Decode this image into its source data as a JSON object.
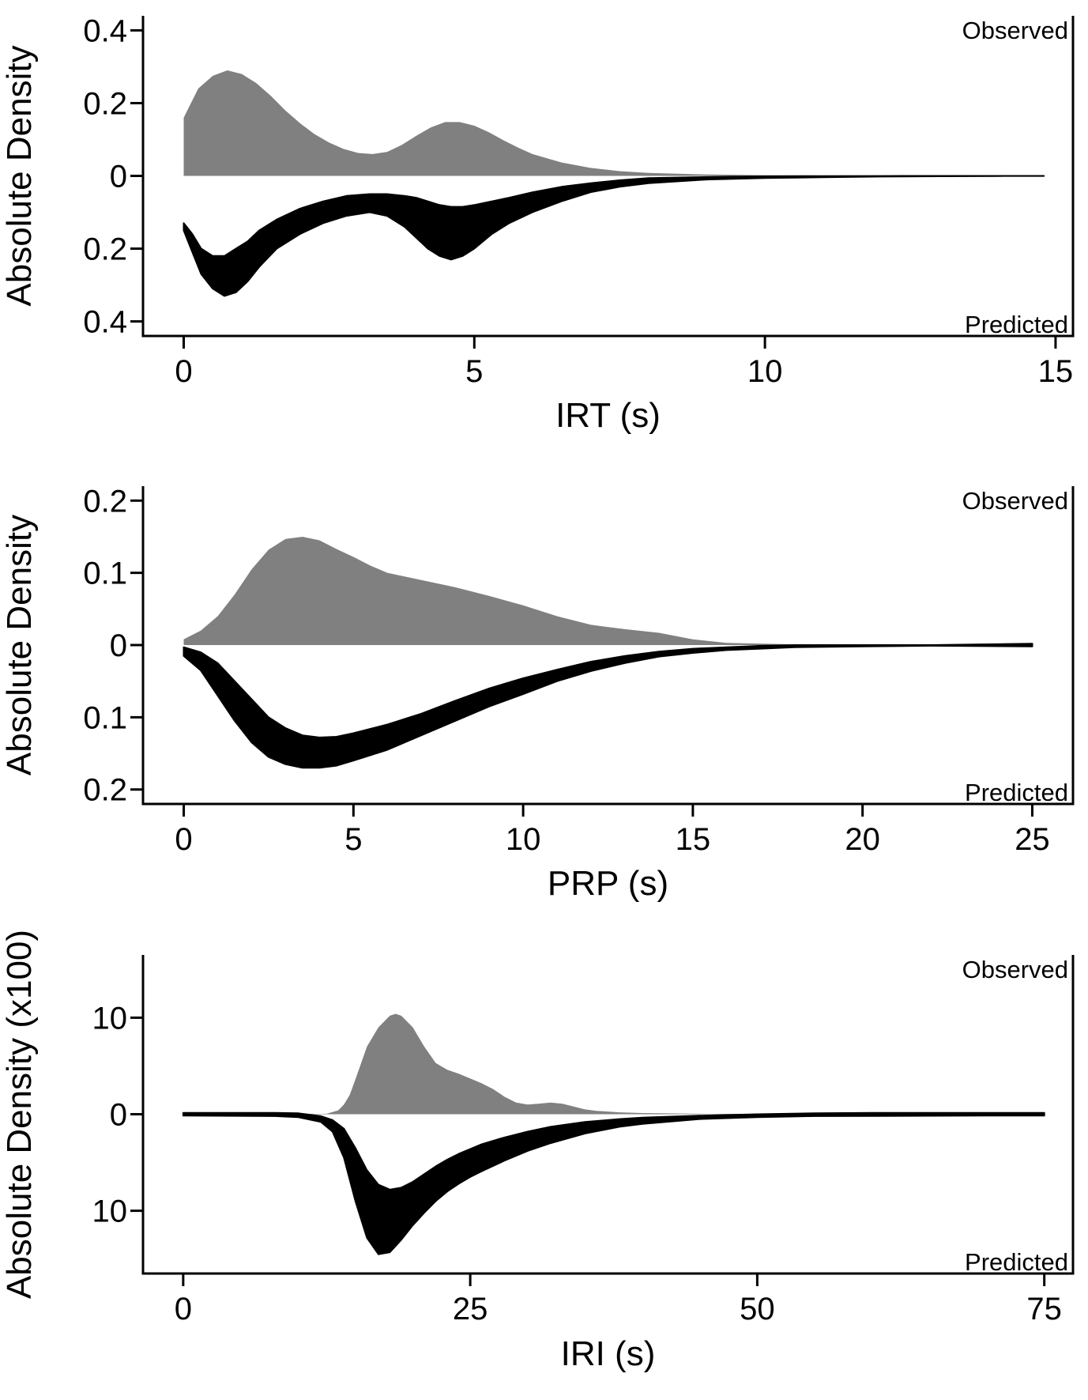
{
  "colors": {
    "observed": "#808080",
    "predicted": "#000000",
    "axis": "#000000",
    "background": "#ffffff"
  },
  "chart_data": [
    {
      "type": "area",
      "title": "",
      "xlabel": "IRT (s)",
      "ylabel": "Absolute Density",
      "top_label": "Observed",
      "bottom_label": "Predicted",
      "xlim": [
        -0.7,
        15.3
      ],
      "ylim": [
        -0.44,
        0.44
      ],
      "xticks": [
        0,
        5,
        10,
        15
      ],
      "xtick_labels": [
        "0",
        "5",
        "10",
        "15"
      ],
      "yticks": [
        0.4,
        0.2,
        0,
        -0.2,
        -0.4
      ],
      "ytick_labels": [
        "0.4",
        "0.2",
        "0",
        "0.2",
        "0.4"
      ],
      "grid": false,
      "series": [
        {
          "name": "Observed",
          "x": [
            0,
            0.25,
            0.5,
            0.75,
            1.0,
            1.25,
            1.5,
            1.75,
            2.0,
            2.25,
            2.5,
            2.75,
            3.0,
            3.25,
            3.5,
            3.75,
            4.0,
            4.25,
            4.5,
            4.75,
            5.0,
            5.25,
            5.5,
            5.75,
            6.0,
            6.5,
            7.0,
            7.5,
            8.0,
            9.0,
            10.0,
            11.0,
            12.0,
            13.0,
            14.0,
            14.8
          ],
          "values": [
            0.16,
            0.24,
            0.275,
            0.29,
            0.28,
            0.255,
            0.22,
            0.18,
            0.145,
            0.115,
            0.092,
            0.074,
            0.063,
            0.06,
            0.066,
            0.085,
            0.11,
            0.133,
            0.148,
            0.148,
            0.138,
            0.12,
            0.098,
            0.078,
            0.06,
            0.037,
            0.022,
            0.013,
            0.008,
            0.004,
            0.002,
            0.001,
            0.0005,
            0.0002,
            0.0001,
            0
          ]
        },
        {
          "name": "Predicted",
          "x": [
            0,
            0.15,
            0.3,
            0.5,
            0.7,
            0.9,
            1.1,
            1.3,
            1.6,
            2.0,
            2.4,
            2.8,
            3.2,
            3.5,
            3.8,
            4.0,
            4.2,
            4.4,
            4.6,
            4.8,
            5.0,
            5.3,
            5.6,
            6.0,
            6.5,
            7.0,
            7.5,
            8.0,
            9.0,
            10.0,
            11.0,
            12.0,
            13.0,
            14.0,
            14.8
          ],
          "lower": [
            -0.15,
            -0.21,
            -0.27,
            -0.31,
            -0.33,
            -0.32,
            -0.29,
            -0.25,
            -0.2,
            -0.16,
            -0.13,
            -0.11,
            -0.1,
            -0.11,
            -0.14,
            -0.17,
            -0.2,
            -0.22,
            -0.23,
            -0.22,
            -0.2,
            -0.16,
            -0.13,
            -0.1,
            -0.07,
            -0.045,
            -0.03,
            -0.02,
            -0.01,
            -0.006,
            -0.004,
            -0.002,
            -0.001,
            -0.0005,
            -0.0002
          ],
          "upper": [
            -0.13,
            -0.16,
            -0.2,
            -0.22,
            -0.22,
            -0.2,
            -0.18,
            -0.15,
            -0.12,
            -0.09,
            -0.07,
            -0.055,
            -0.05,
            -0.05,
            -0.055,
            -0.06,
            -0.07,
            -0.08,
            -0.085,
            -0.085,
            -0.08,
            -0.07,
            -0.06,
            -0.045,
            -0.03,
            -0.02,
            -0.012,
            -0.006,
            -0.003,
            -0.001,
            -0.0005,
            -0.0002,
            -0.0001,
            0,
            0
          ]
        }
      ]
    },
    {
      "type": "area",
      "title": "",
      "xlabel": "PRP (s)",
      "ylabel": "Absolute Density",
      "top_label": "Observed",
      "bottom_label": "Predicted",
      "xlim": [
        -1.2,
        26.2
      ],
      "ylim": [
        -0.22,
        0.22
      ],
      "xticks": [
        0,
        5,
        10,
        15,
        20,
        25
      ],
      "xtick_labels": [
        "0",
        "5",
        "10",
        "15",
        "20",
        "25"
      ],
      "yticks": [
        0.2,
        0.1,
        0,
        -0.1,
        -0.2
      ],
      "ytick_labels": [
        "0.2",
        "0.1",
        "0",
        "0.1",
        "0.2"
      ],
      "grid": false,
      "series": [
        {
          "name": "Observed",
          "x": [
            0,
            0.5,
            1.0,
            1.5,
            2.0,
            2.5,
            3.0,
            3.5,
            4.0,
            4.5,
            5.0,
            5.5,
            6.0,
            7.0,
            8.0,
            9.0,
            10.0,
            11.0,
            12.0,
            13.0,
            14.0,
            15.0,
            16.0,
            18.0,
            20.0,
            22.0,
            25.0
          ],
          "values": [
            0.008,
            0.02,
            0.04,
            0.07,
            0.105,
            0.132,
            0.147,
            0.15,
            0.145,
            0.133,
            0.122,
            0.11,
            0.1,
            0.09,
            0.08,
            0.068,
            0.055,
            0.04,
            0.028,
            0.022,
            0.017,
            0.008,
            0.003,
            0.001,
            0.0005,
            0.0002,
            0
          ]
        },
        {
          "name": "Predicted",
          "x": [
            0,
            0.5,
            1.0,
            1.5,
            2.0,
            2.5,
            3.0,
            3.5,
            4.0,
            4.5,
            5.0,
            6.0,
            7.0,
            8.0,
            9.0,
            10.0,
            11.0,
            12.0,
            13.0,
            14.0,
            15.0,
            16.0,
            17.0,
            18.0,
            20.0,
            22.0,
            25.0
          ],
          "lower": [
            -0.015,
            -0.035,
            -0.07,
            -0.105,
            -0.135,
            -0.155,
            -0.165,
            -0.17,
            -0.17,
            -0.167,
            -0.16,
            -0.145,
            -0.125,
            -0.105,
            -0.085,
            -0.068,
            -0.05,
            -0.036,
            -0.025,
            -0.016,
            -0.011,
            -0.007,
            -0.005,
            -0.003,
            -0.002,
            -0.001,
            -0.002
          ],
          "upper": [
            -0.003,
            -0.01,
            -0.025,
            -0.05,
            -0.075,
            -0.1,
            -0.115,
            -0.125,
            -0.128,
            -0.127,
            -0.122,
            -0.11,
            -0.095,
            -0.077,
            -0.06,
            -0.046,
            -0.034,
            -0.023,
            -0.015,
            -0.009,
            -0.005,
            -0.003,
            -0.001,
            0,
            0,
            0,
            0.002
          ]
        }
      ]
    },
    {
      "type": "area",
      "title": "",
      "xlabel": "IRI (s)",
      "ylabel": "Absolute Density (x100)",
      "top_label": "Observed",
      "bottom_label": "Predicted",
      "xlim": [
        -3.5,
        77.5
      ],
      "ylim": [
        -16.5,
        16.5
      ],
      "xticks": [
        0,
        25,
        50,
        75
      ],
      "xtick_labels": [
        "0",
        "25",
        "50",
        "75"
      ],
      "yticks": [
        10,
        0,
        -10
      ],
      "ytick_labels": [
        "10",
        "0",
        "10"
      ],
      "grid": false,
      "series": [
        {
          "name": "Observed",
          "x": [
            0,
            10,
            12.5,
            13.5,
            14.0,
            14.5,
            15.0,
            15.5,
            16.0,
            17.0,
            18.0,
            18.5,
            19.0,
            20.0,
            21.0,
            22.0,
            23.0,
            24.0,
            25.0,
            26.0,
            27.0,
            28.0,
            29.0,
            30.0,
            31.0,
            32.0,
            33.0,
            34.0,
            35.0,
            36.0,
            38.0,
            40.0,
            45.0,
            50.0,
            55.0
          ],
          "values": [
            0,
            0,
            0.05,
            0.4,
            1.0,
            2.0,
            3.6,
            5.3,
            7.0,
            9.0,
            10.2,
            10.4,
            10.2,
            9.0,
            7.0,
            5.3,
            4.6,
            4.2,
            3.7,
            3.2,
            2.6,
            1.8,
            1.2,
            1.0,
            1.1,
            1.2,
            1.1,
            0.8,
            0.5,
            0.35,
            0.2,
            0.12,
            0.05,
            0.01,
            0
          ]
        },
        {
          "name": "Predicted",
          "x": [
            0,
            8,
            10,
            12,
            13,
            14,
            15,
            16,
            17,
            18,
            19,
            20,
            21,
            22,
            23,
            24,
            25,
            26,
            28,
            30,
            32,
            35,
            38,
            40,
            45,
            50,
            55,
            60,
            65,
            70,
            75
          ],
          "lower": [
            -0.15,
            -0.2,
            -0.3,
            -0.8,
            -1.8,
            -4.5,
            -9.0,
            -12.8,
            -14.5,
            -14.3,
            -13.0,
            -11.5,
            -10.2,
            -9.0,
            -8.0,
            -7.2,
            -6.5,
            -5.9,
            -4.8,
            -3.8,
            -3.0,
            -2.0,
            -1.3,
            -1.0,
            -0.5,
            -0.3,
            -0.2,
            -0.18,
            -0.16,
            -0.15,
            -0.15
          ],
          "upper": [
            0.15,
            0.15,
            0.1,
            -0.2,
            -0.6,
            -1.5,
            -3.5,
            -5.8,
            -7.3,
            -7.8,
            -7.6,
            -7.0,
            -6.2,
            -5.4,
            -4.7,
            -4.1,
            -3.6,
            -3.1,
            -2.4,
            -1.8,
            -1.3,
            -0.8,
            -0.5,
            -0.35,
            -0.15,
            0.0,
            0.1,
            0.15,
            0.15,
            0.15,
            0.15
          ]
        }
      ]
    }
  ]
}
